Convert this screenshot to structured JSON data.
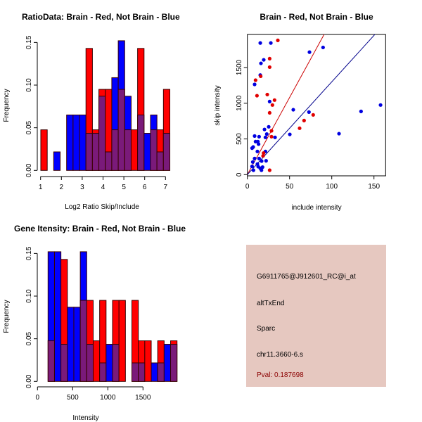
{
  "colors": {
    "red": "#ff0000",
    "blue": "#0000ff",
    "overlap": "#7a1a7a",
    "border": "#3a0000",
    "panel_bg": "#e6c8c0",
    "pval_text": "#8b0000",
    "red_line": "#cc0000",
    "blue_line": "#00008b"
  },
  "chart_data": [
    {
      "type": "bar",
      "subtype": "overlaid-histogram",
      "title": "RatioData: Brain - Red, Not Brain - Blue",
      "xlabel": "Log2 Ratio Skip/Include",
      "ylabel": "Frequency",
      "xlim": [
        1,
        7
      ],
      "ylim": [
        0,
        0.15
      ],
      "xticks": [
        "1",
        "2",
        "3",
        "4",
        "5",
        "6",
        "7"
      ],
      "yticks": [
        "0.00",
        "0.05",
        "0.10",
        "0.15"
      ],
      "bin_start": 1.01,
      "bin_width": 0.31,
      "series": [
        {
          "name": "Brain",
          "color": "red",
          "values": [
            0.0476,
            0,
            0,
            0,
            0,
            0,
            0,
            0.143,
            0.0476,
            0.095,
            0.095,
            0.0476,
            0.095,
            0.0476,
            0.0476,
            0.143,
            0,
            0.0476,
            0.0476,
            0.095
          ]
        },
        {
          "name": "Not Brain",
          "color": "blue",
          "values": [
            0,
            0,
            0.0217,
            0,
            0.065,
            0.065,
            0.065,
            0.0435,
            0.0435,
            0.087,
            0.0217,
            0.1087,
            0.152,
            0.087,
            0,
            0.065,
            0.0435,
            0.065,
            0.0217,
            0.0435
          ]
        }
      ]
    },
    {
      "type": "scatter",
      "title": "Brain - Red, Not Brain - Blue",
      "xlabel": "include intensity",
      "ylabel": "skip intensity",
      "xlim": [
        0,
        163
      ],
      "ylim": [
        0,
        1950
      ],
      "xticks": [
        "0",
        "50",
        "100",
        "150"
      ],
      "yticks": [
        "0",
        "500",
        "1000",
        "1500"
      ],
      "series": [
        {
          "name": "Brain",
          "color": "red",
          "fit_slope": 21.6,
          "points": [
            [
              36.1,
              1881
            ],
            [
              26.4,
              1625
            ],
            [
              26.4,
              1506
            ],
            [
              15.8,
              1378
            ],
            [
              9.7,
              1323
            ],
            [
              11.4,
              1106
            ],
            [
              23.6,
              1122
            ],
            [
              32.2,
              1044
            ],
            [
              29.7,
              975
            ],
            [
              26.4,
              866
            ],
            [
              78,
              837
            ],
            [
              67.2,
              758
            ],
            [
              61.9,
              650
            ],
            [
              28.6,
              614
            ],
            [
              28.6,
              532
            ],
            [
              19.2,
              302
            ],
            [
              18.6,
              262
            ],
            [
              26.4,
              62
            ]
          ]
        },
        {
          "name": "Not Brain",
          "color": "blue",
          "fit_slope": 13.0,
          "points": [
            [
              15.3,
              1844
            ],
            [
              27.8,
              1844
            ],
            [
              89.7,
              1782
            ],
            [
              73.6,
              1716
            ],
            [
              19.4,
              1608
            ],
            [
              16.1,
              1559
            ],
            [
              15.3,
              1395
            ],
            [
              8.6,
              1264
            ],
            [
              26.4,
              1024
            ],
            [
              157.8,
              975
            ],
            [
              54.4,
              909
            ],
            [
              73,
              876
            ],
            [
              134.7,
              886
            ],
            [
              50.3,
              564
            ],
            [
              108.6,
              574
            ],
            [
              25.3,
              670
            ],
            [
              20.3,
              633
            ],
            [
              23,
              568
            ],
            [
              21.4,
              522
            ],
            [
              32.8,
              522
            ],
            [
              8.6,
              541
            ],
            [
              13.9,
              532
            ],
            [
              9.7,
              463
            ],
            [
              12.5,
              463
            ],
            [
              13.3,
              427
            ],
            [
              5.6,
              371
            ],
            [
              6.9,
              387
            ],
            [
              11.9,
              325
            ],
            [
              21.4,
              325
            ],
            [
              8.6,
              226
            ],
            [
              13.9,
              226
            ],
            [
              6.4,
              177
            ],
            [
              16.9,
              190
            ],
            [
              22.2,
              194
            ],
            [
              11.9,
              148
            ],
            [
              12.8,
              112
            ],
            [
              5.6,
              115
            ],
            [
              15.3,
              89
            ],
            [
              18,
              105
            ],
            [
              7.2,
              62
            ],
            [
              16.7,
              62
            ]
          ]
        }
      ]
    },
    {
      "type": "bar",
      "subtype": "overlaid-histogram",
      "title": "Gene Itensity: Brain - Red, Not Brain - Blue",
      "xlabel": "Intensity",
      "ylabel": "Frequency",
      "xlim": [
        0,
        1900
      ],
      "ylim": [
        0,
        0.15
      ],
      "xticks": [
        "0",
        "500",
        "1000",
        "1500"
      ],
      "yticks": [
        "0.00",
        "0.05",
        "0.10",
        "0.15"
      ],
      "bin_start": 150,
      "bin_width": 91.7,
      "series": [
        {
          "name": "Brain",
          "color": "red",
          "values": [
            0.0476,
            0,
            0.143,
            0,
            0,
            0.095,
            0.095,
            0.0476,
            0.095,
            0,
            0.095,
            0.095,
            0,
            0.095,
            0.0476,
            0.0476,
            0,
            0.0476,
            0,
            0.0476
          ]
        },
        {
          "name": "Not Brain",
          "color": "blue",
          "values": [
            0.152,
            0.152,
            0.0435,
            0.087,
            0.087,
            0.152,
            0.0435,
            0,
            0.0217,
            0.0435,
            0.0435,
            0,
            0,
            0.0217,
            0.0217,
            0,
            0.0217,
            0.0217,
            0.0435,
            0.0435
          ]
        }
      ]
    }
  ],
  "info_panel": {
    "probe_id": "G6911765@J912601_RC@i_at",
    "event_type": "altTxEnd",
    "gene": "Sparc",
    "location": "chr11.3660-6.s",
    "pval": "Pval: 0.187698"
  }
}
